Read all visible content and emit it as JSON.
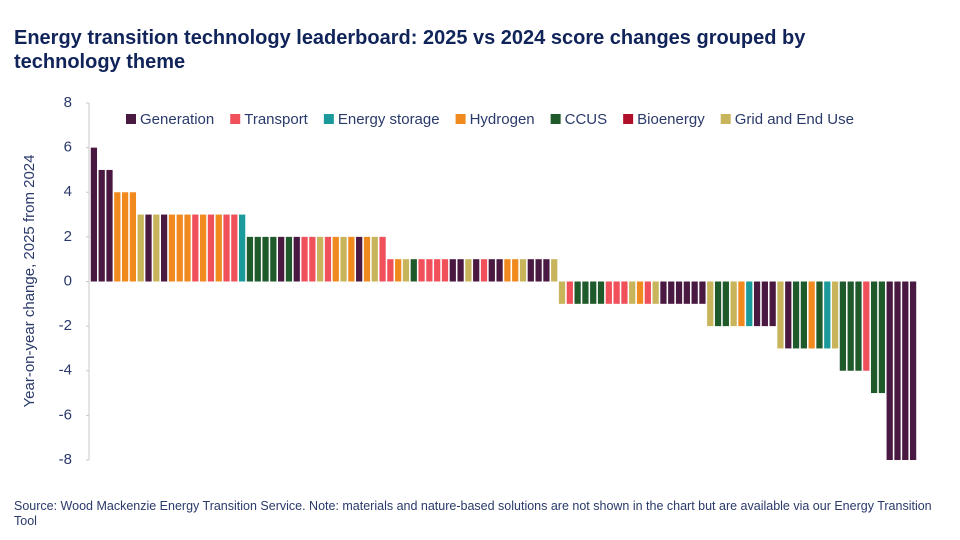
{
  "chart_data": {
    "type": "bar",
    "title": "Energy transition technology leaderboard: 2025 vs 2024 score changes grouped by technology theme",
    "y_label": "Year-on-year change, 2025 from 2024",
    "note": "Source: Wood Mackenzie Energy Transition Service. Note: materials and nature-based solutions are not shown in the chart but are available via our Energy Transition Tool",
    "ylim": [
      -8,
      8
    ],
    "yticks": [
      -8,
      -6,
      -4,
      -2,
      0,
      2,
      4,
      6,
      8
    ],
    "legend": "top",
    "categories": [
      null,
      null,
      null,
      null,
      null,
      null,
      null,
      null,
      null,
      null,
      null,
      null,
      null,
      null,
      null,
      null,
      null,
      null,
      null,
      null,
      null,
      null,
      null,
      null,
      null,
      null,
      null,
      null,
      null,
      null,
      null,
      null,
      null,
      null,
      null,
      null,
      null,
      null,
      null,
      null,
      null,
      null,
      null,
      null,
      null,
      null,
      null,
      null,
      null,
      null,
      null,
      null,
      null,
      null,
      null,
      null,
      null,
      null,
      null,
      null,
      null,
      null,
      null,
      null,
      null,
      null,
      null,
      null,
      null,
      null,
      null,
      null,
      null,
      null,
      null,
      null,
      null,
      null,
      null,
      null,
      null,
      null,
      null,
      null,
      null,
      null,
      null,
      null,
      null,
      null,
      null,
      null,
      null,
      null,
      null,
      null,
      null,
      null,
      null,
      null,
      null,
      null,
      null,
      null,
      null,
      null
    ],
    "series": [
      {
        "name": "Generation",
        "color": "#4a1942",
        "values": [
          6,
          5,
          5,
          null,
          null,
          null,
          null,
          3,
          null,
          3,
          null,
          null,
          null,
          null,
          null,
          null,
          null,
          null,
          null,
          null,
          null,
          null,
          null,
          null,
          2,
          null,
          2,
          null,
          null,
          null,
          null,
          null,
          null,
          null,
          2,
          null,
          null,
          null,
          null,
          null,
          null,
          null,
          null,
          null,
          null,
          null,
          1,
          1,
          null,
          1,
          null,
          1,
          1,
          null,
          null,
          null,
          1,
          1,
          1,
          null,
          null,
          null,
          null,
          null,
          null,
          null,
          null,
          null,
          null,
          null,
          null,
          null,
          null,
          -1,
          -1,
          -1,
          -1,
          -1,
          -1,
          null,
          null,
          null,
          null,
          null,
          null,
          -2,
          -2,
          -2,
          null,
          -3,
          null,
          null,
          null,
          null,
          null,
          null,
          null,
          null,
          null,
          null,
          null,
          null,
          -8,
          -8,
          -8,
          -8
        ]
      },
      {
        "name": "Transport",
        "color": "#f0505a",
        "values": [
          null,
          null,
          null,
          null,
          null,
          null,
          null,
          null,
          null,
          null,
          null,
          null,
          null,
          3,
          null,
          3,
          null,
          3,
          3,
          null,
          null,
          null,
          null,
          null,
          null,
          null,
          null,
          2,
          2,
          null,
          2,
          null,
          null,
          null,
          null,
          null,
          null,
          2,
          1,
          null,
          null,
          null,
          1,
          1,
          1,
          1,
          null,
          null,
          null,
          null,
          1,
          null,
          null,
          null,
          null,
          null,
          null,
          null,
          null,
          null,
          null,
          -1,
          null,
          null,
          null,
          null,
          -1,
          -1,
          -1,
          null,
          null,
          -1,
          null,
          null,
          null,
          null,
          null,
          null,
          null,
          null,
          null,
          null,
          null,
          null,
          null,
          null,
          null,
          null,
          null,
          null,
          null,
          null,
          null,
          null,
          null,
          null,
          null,
          null,
          null,
          -4,
          null,
          null,
          null,
          null,
          null,
          null
        ]
      },
      {
        "name": "Energy storage",
        "color": "#1a9a9a",
        "values": [
          null,
          null,
          null,
          null,
          null,
          null,
          null,
          null,
          null,
          null,
          null,
          null,
          null,
          null,
          null,
          null,
          null,
          null,
          null,
          3,
          null,
          null,
          null,
          null,
          null,
          null,
          null,
          null,
          null,
          null,
          null,
          null,
          null,
          null,
          null,
          null,
          null,
          null,
          null,
          null,
          null,
          null,
          null,
          null,
          null,
          null,
          null,
          null,
          null,
          null,
          null,
          null,
          null,
          null,
          null,
          null,
          null,
          null,
          null,
          null,
          null,
          null,
          null,
          null,
          null,
          null,
          null,
          null,
          null,
          null,
          null,
          null,
          null,
          null,
          null,
          null,
          null,
          null,
          null,
          null,
          null,
          null,
          null,
          null,
          -2,
          null,
          null,
          null,
          null,
          null,
          null,
          null,
          null,
          null,
          -3,
          null,
          null,
          null,
          null,
          null,
          null,
          null,
          null,
          null,
          null,
          null
        ]
      },
      {
        "name": "Hydrogen",
        "color": "#f08a1e",
        "values": [
          null,
          null,
          null,
          4,
          4,
          4,
          null,
          null,
          null,
          null,
          3,
          3,
          3,
          null,
          3,
          null,
          3,
          null,
          null,
          null,
          null,
          null,
          null,
          null,
          null,
          null,
          null,
          null,
          null,
          null,
          null,
          2,
          null,
          2,
          null,
          2,
          null,
          null,
          null,
          1,
          null,
          null,
          null,
          null,
          null,
          null,
          null,
          null,
          null,
          null,
          null,
          null,
          null,
          1,
          1,
          null,
          null,
          null,
          null,
          null,
          null,
          null,
          null,
          null,
          null,
          null,
          null,
          null,
          null,
          null,
          -1,
          null,
          null,
          null,
          null,
          null,
          null,
          null,
          null,
          null,
          null,
          null,
          null,
          -2,
          null,
          null,
          null,
          null,
          null,
          null,
          null,
          null,
          -3,
          null,
          null,
          null,
          null,
          null,
          null,
          null,
          null,
          null,
          null,
          null,
          null,
          null
        ]
      },
      {
        "name": "CCUS",
        "color": "#1e5a2a",
        "values": [
          null,
          null,
          null,
          null,
          null,
          null,
          null,
          null,
          null,
          null,
          null,
          null,
          null,
          null,
          null,
          null,
          null,
          null,
          null,
          null,
          2,
          2,
          2,
          2,
          null,
          2,
          null,
          null,
          null,
          null,
          null,
          null,
          null,
          null,
          null,
          null,
          null,
          null,
          null,
          null,
          null,
          1,
          null,
          null,
          null,
          null,
          null,
          null,
          null,
          null,
          null,
          null,
          null,
          null,
          null,
          null,
          null,
          null,
          null,
          null,
          null,
          null,
          -1,
          -1,
          -1,
          -1,
          null,
          null,
          null,
          null,
          null,
          null,
          null,
          null,
          null,
          null,
          null,
          null,
          null,
          null,
          -2,
          -2,
          null,
          null,
          null,
          null,
          null,
          null,
          null,
          null,
          -3,
          -3,
          null,
          -3,
          null,
          null,
          -4,
          -4,
          -4,
          null,
          -5,
          -5,
          null,
          null,
          null,
          null
        ]
      },
      {
        "name": "Bioenergy",
        "color": "#b0102a",
        "values": [
          null,
          null,
          null,
          null,
          null,
          null,
          null,
          null,
          null,
          null,
          null,
          null,
          null,
          null,
          null,
          null,
          null,
          null,
          null,
          null,
          null,
          null,
          null,
          null,
          null,
          null,
          null,
          null,
          null,
          null,
          null,
          null,
          null,
          null,
          null,
          null,
          null,
          null,
          null,
          null,
          null,
          null,
          null,
          null,
          null,
          null,
          null,
          null,
          null,
          null,
          null,
          null,
          null,
          null,
          null,
          null,
          null,
          null,
          null,
          null,
          null,
          null,
          null,
          null,
          null,
          null,
          null,
          null,
          null,
          null,
          null,
          null,
          null,
          null,
          null,
          null,
          null,
          null,
          null,
          null,
          null,
          null,
          null,
          null,
          null,
          null,
          null,
          null,
          null,
          null,
          null,
          null,
          null,
          null,
          null,
          null,
          null,
          null,
          null,
          null,
          null,
          null,
          null,
          null,
          null,
          null
        ]
      },
      {
        "name": "Grid and End Use",
        "color": "#c8b45a",
        "values": [
          null,
          null,
          null,
          null,
          null,
          null,
          3,
          null,
          3,
          null,
          null,
          null,
          null,
          null,
          null,
          null,
          null,
          null,
          null,
          null,
          null,
          null,
          null,
          null,
          null,
          null,
          null,
          null,
          null,
          2,
          null,
          null,
          2,
          null,
          null,
          null,
          2,
          null,
          null,
          null,
          1,
          null,
          null,
          null,
          null,
          null,
          null,
          null,
          1,
          null,
          null,
          null,
          null,
          null,
          null,
          1,
          null,
          null,
          null,
          1,
          -1,
          null,
          null,
          null,
          null,
          null,
          null,
          null,
          null,
          -1,
          null,
          null,
          -1,
          null,
          null,
          null,
          null,
          null,
          null,
          -2,
          null,
          null,
          -2,
          null,
          null,
          null,
          null,
          null,
          -3,
          null,
          null,
          null,
          null,
          null,
          null,
          -3,
          null,
          null,
          null,
          null,
          null,
          null,
          null,
          null,
          null,
          null
        ]
      }
    ]
  }
}
